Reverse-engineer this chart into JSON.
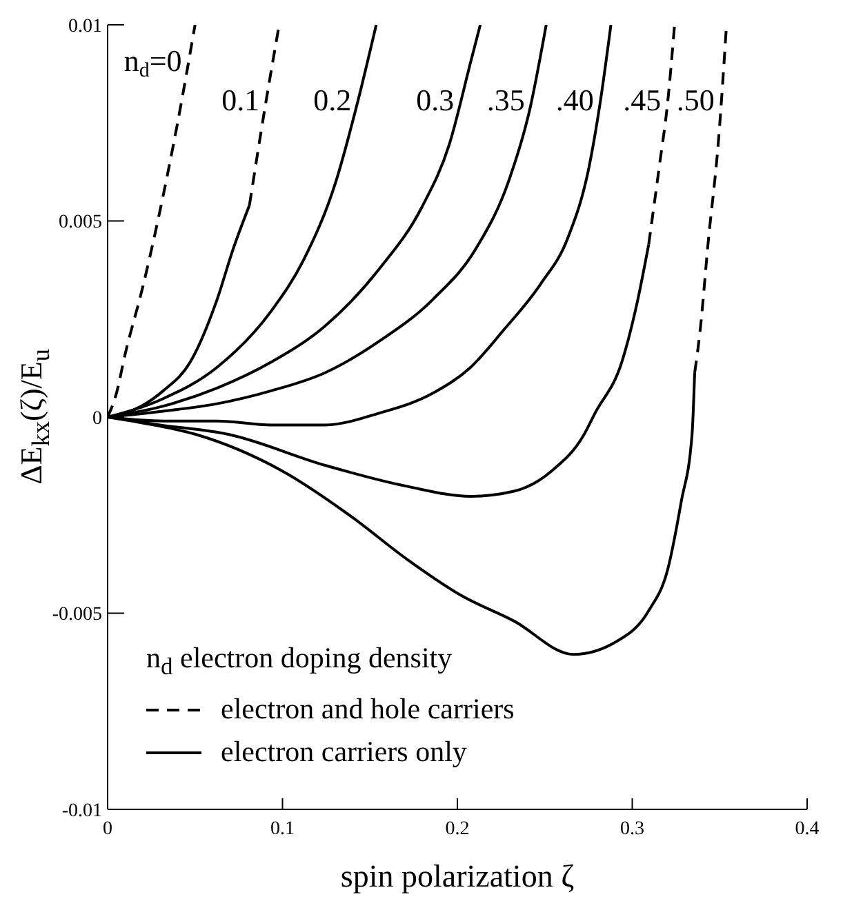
{
  "chart_data": {
    "type": "line",
    "xlabel": "spin polarization ζ",
    "ylabel": "ΔE$_{kx}$(ζ)/E$_{u}$",
    "legend_title": "n$_{d}$ electron doping density",
    "annotations": [
      "electron and hole carriers",
      "electron carriers only"
    ],
    "xlim": [
      0,
      0.4
    ],
    "ylim": [
      -0.01,
      0.01
    ],
    "xticks": [
      0,
      0.1,
      0.2,
      0.3,
      0.4
    ],
    "yticks": [
      -0.01,
      -0.005,
      0,
      0.005,
      0.01
    ],
    "marker": "none",
    "series": [
      {
        "name": "n$_{d}$=0",
        "color": "#000000",
        "line_style": "dashed",
        "x": [
          0,
          0.005,
          0.01,
          0.02,
          0.0287,
          0.04,
          0.05
        ],
        "values": [
          0,
          0.0006,
          0.0016,
          0.0033,
          0.005,
          0.0075,
          0.01
        ]
      },
      {
        "name": null,
        "color": "#000000",
        "line_style": "solid",
        "x": [
          0,
          0.0194,
          0.0318,
          0.0472,
          0.0626,
          0.0719,
          0.0811
        ],
        "values": [
          0,
          0.00028,
          0.00067,
          0.0014,
          0.003,
          0.0043,
          0.0054
        ]
      },
      {
        "name": "0.1",
        "color": "#000000",
        "line_style": "dashed",
        "x": [
          0.0811,
          0.0904,
          0.0981
        ],
        "values": [
          0.0054,
          0.008,
          0.01
        ]
      },
      {
        "name": "0.2",
        "color": "#000000",
        "line_style": "solid",
        "x": [
          0,
          0.0318,
          0.0626,
          0.0935,
          0.112,
          0.1305,
          0.1428,
          0.1536
        ],
        "values": [
          0,
          0.00047,
          0.00127,
          0.0027,
          0.004,
          0.006,
          0.008,
          0.01
        ]
      },
      {
        "name": "0.3",
        "color": "#000000",
        "line_style": "solid",
        "x": [
          0,
          0.0318,
          0.0626,
          0.0935,
          0.1243,
          0.1552,
          0.1798,
          0.1953,
          0.2076,
          0.2131
        ],
        "values": [
          0,
          0.00028,
          0.00074,
          0.0014,
          0.00232,
          0.00377,
          0.00536,
          0.00694,
          0.00905,
          0.01
        ]
      },
      {
        "name": ".35",
        "color": "#000000",
        "line_style": "solid",
        "x": [
          0,
          0.0318,
          0.0626,
          0.0935,
          0.1243,
          0.1552,
          0.186,
          0.2107,
          0.2292,
          0.2415,
          0.2508
        ],
        "values": [
          0,
          0.00015,
          0.00034,
          0.00067,
          0.00113,
          0.00193,
          0.003,
          0.0043,
          0.006,
          0.00786,
          0.01
        ]
      },
      {
        "name": ".40",
        "color": "#000000",
        "line_style": "solid",
        "x": [
          0,
          0.0318,
          0.0626,
          0.0935,
          0.1243,
          0.1552,
          0.186,
          0.2076,
          0.2261,
          0.2477,
          0.2631,
          0.2754,
          0.2816,
          0.2878
        ],
        "values": [
          0,
          -0.0001,
          -0.0001,
          -0.0002,
          -0.0002,
          0.0001,
          0.00061,
          0.00127,
          0.0022,
          0.0034,
          0.00456,
          0.0064,
          0.008,
          0.01
        ]
      },
      {
        "name": null,
        "color": "#000000",
        "line_style": "solid",
        "x": [
          0,
          0.03,
          0.069,
          0.1244,
          0.1707,
          0.2077,
          0.2324,
          0.254,
          0.2725,
          0.2787,
          0.294,
          0.3032,
          0.3094
        ],
        "values": [
          0,
          -0.0002,
          -0.00044,
          -0.00123,
          -0.00176,
          -0.00202,
          -0.00189,
          -0.00137,
          -0.00044,
          0.0001,
          0.0014,
          0.003,
          0.0044
        ]
      },
      {
        "name": ".45",
        "color": "#000000",
        "line_style": "dashed",
        "x": [
          0.3094,
          0.3155,
          0.3202,
          0.3242
        ],
        "values": [
          0.0044,
          0.0064,
          0.008,
          0.01
        ]
      },
      {
        "name": null,
        "color": "#000000",
        "line_style": "solid",
        "x": [
          0,
          0.02,
          0.0503,
          0.0997,
          0.1398,
          0.1707,
          0.2015,
          0.2324,
          0.2663,
          0.291,
          0.3095,
          0.3203,
          0.328,
          0.3342,
          0.3357
        ],
        "values": [
          0,
          -0.00015,
          -0.00044,
          -0.00137,
          -0.00255,
          -0.00361,
          -0.00453,
          -0.0052,
          -0.00605,
          -0.00572,
          -0.00493,
          -0.00388,
          -0.00216,
          -0.00044,
          0.00113
        ]
      },
      {
        "name": ".50",
        "color": "#000000",
        "line_style": "dashed",
        "x": [
          0.3357,
          0.3388,
          0.3433,
          0.3494,
          0.3539
        ],
        "values": [
          0.00113,
          0.0022,
          0.0044,
          0.0071,
          0.01
        ]
      }
    ]
  }
}
